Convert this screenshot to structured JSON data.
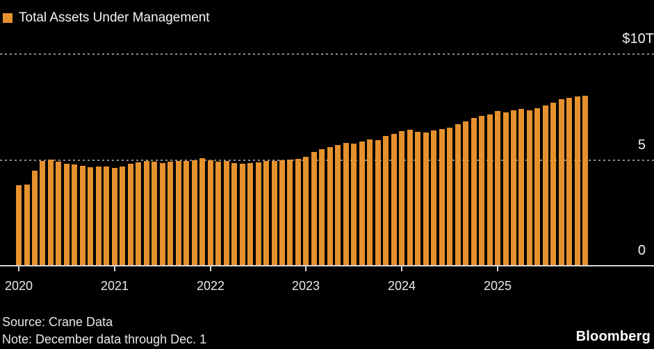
{
  "legend": {
    "label": "Total Assets Under Management"
  },
  "footer": {
    "source": "Source: Crane Data",
    "note": "Note: December data through Dec. 1",
    "brand": "Bloomberg"
  },
  "colors": {
    "background": "#000000",
    "bar": "#E5912E",
    "gridline": "#8C8C8C",
    "axis": "#D6D6D6",
    "text": "#F2F2F2"
  },
  "chart_data": {
    "type": "bar",
    "title": "Total Assets Under Management",
    "legend_position": "top-left",
    "grid": "horizontal-dotted",
    "ylim": [
      0,
      10
    ],
    "y_ticks": [
      {
        "value": 0,
        "label": "0"
      },
      {
        "value": 5,
        "label": "5"
      },
      {
        "value": 10,
        "label": "$10T"
      }
    ],
    "x_tick_labels": [
      "2020",
      "2021",
      "2022",
      "2023",
      "2024",
      "2025"
    ],
    "x": [
      "2020-01",
      "2020-02",
      "2020-03",
      "2020-04",
      "2020-05",
      "2020-06",
      "2020-07",
      "2020-08",
      "2020-09",
      "2020-10",
      "2020-11",
      "2020-12",
      "2021-01",
      "2021-02",
      "2021-03",
      "2021-04",
      "2021-05",
      "2021-06",
      "2021-07",
      "2021-08",
      "2021-09",
      "2021-10",
      "2021-11",
      "2021-12",
      "2022-01",
      "2022-02",
      "2022-03",
      "2022-04",
      "2022-05",
      "2022-06",
      "2022-07",
      "2022-08",
      "2022-09",
      "2022-10",
      "2022-11",
      "2022-12",
      "2023-01",
      "2023-02",
      "2023-03",
      "2023-04",
      "2023-05",
      "2023-06",
      "2023-07",
      "2023-08",
      "2023-09",
      "2023-10",
      "2023-11",
      "2023-12",
      "2024-01",
      "2024-02",
      "2024-03",
      "2024-04",
      "2024-05",
      "2024-06",
      "2024-07",
      "2024-08",
      "2024-09",
      "2024-10",
      "2024-11",
      "2024-12",
      "2025-01",
      "2025-02",
      "2025-03",
      "2025-04",
      "2025-05",
      "2025-06",
      "2025-07",
      "2025-08",
      "2025-09",
      "2025-10",
      "2025-11",
      "2025-12"
    ],
    "values": [
      3.8,
      3.84,
      4.5,
      4.96,
      5.02,
      4.92,
      4.83,
      4.8,
      4.72,
      4.66,
      4.7,
      4.68,
      4.64,
      4.68,
      4.82,
      4.9,
      4.96,
      4.92,
      4.86,
      4.92,
      4.95,
      4.96,
      5.0,
      5.08,
      4.97,
      4.91,
      4.95,
      4.87,
      4.81,
      4.84,
      4.88,
      4.94,
      4.96,
      4.98,
      5.01,
      5.06,
      5.15,
      5.38,
      5.52,
      5.6,
      5.72,
      5.8,
      5.78,
      5.88,
      5.98,
      5.93,
      6.12,
      6.24,
      6.35,
      6.42,
      6.33,
      6.31,
      6.41,
      6.46,
      6.52,
      6.7,
      6.82,
      7.0,
      7.1,
      7.16,
      7.3,
      7.24,
      7.33,
      7.4,
      7.36,
      7.43,
      7.57,
      7.7,
      7.87,
      7.95,
      8.0,
      8.05
    ]
  }
}
